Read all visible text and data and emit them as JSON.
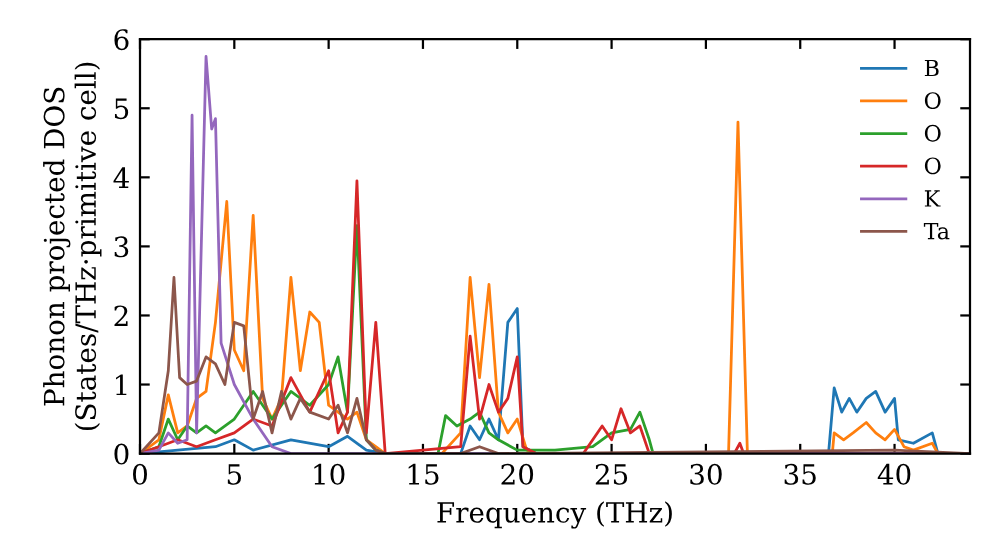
{
  "chart_data": {
    "type": "line",
    "xlabel": "Frequency (THz)",
    "ylabel": "Phonon projected DOS\n(States/THz·primitive cell)",
    "xlim": [
      0,
      44
    ],
    "ylim": [
      0,
      6
    ],
    "xticks": [
      0,
      5,
      10,
      15,
      20,
      25,
      30,
      35,
      40
    ],
    "yticks": [
      0,
      1,
      2,
      3,
      4,
      5,
      6
    ],
    "grid": false,
    "legend": "top right",
    "marker": "none",
    "line_style": "solid",
    "series": [
      {
        "name": "B",
        "color": "#1f77b4",
        "x": [
          0,
          2,
          4,
          5,
          6,
          8,
          10,
          11,
          12,
          13,
          17,
          17.5,
          18,
          18.5,
          19,
          19.5,
          20,
          20.3,
          21,
          36.5,
          36.8,
          37.2,
          37.6,
          38,
          38.5,
          39,
          39.5,
          40,
          40.2,
          41,
          42,
          42.3,
          44
        ],
        "values": [
          0,
          0.05,
          0.1,
          0.2,
          0.05,
          0.2,
          0.1,
          0.25,
          0.05,
          0,
          0,
          0.4,
          0.2,
          0.5,
          0.2,
          1.9,
          2.1,
          0.1,
          0,
          0,
          0.95,
          0.6,
          0.8,
          0.6,
          0.8,
          0.9,
          0.6,
          0.8,
          0.2,
          0.15,
          0.3,
          0,
          0
        ]
      },
      {
        "name": "O",
        "color": "#ff7f0e",
        "x": [
          0,
          1,
          1.5,
          2,
          2.5,
          3,
          3.5,
          4,
          4.6,
          5,
          5.5,
          6,
          6.5,
          7,
          7.5,
          8,
          8.5,
          9,
          9.5,
          10,
          10.5,
          11,
          11.5,
          12,
          12.5,
          13,
          16,
          17,
          17.5,
          18,
          18.5,
          19,
          19.5,
          20,
          20.5,
          21,
          31.2,
          31.7,
          32.2,
          36.7,
          36.8,
          37.3,
          37.8,
          38.5,
          39,
          39.5,
          40,
          40.5,
          41,
          42,
          42.3,
          44
        ],
        "values": [
          0,
          0.2,
          0.85,
          0.3,
          0.4,
          0.8,
          0.9,
          1.9,
          3.65,
          1.5,
          1.2,
          3.45,
          0.8,
          0.5,
          0.8,
          2.55,
          1.2,
          2.05,
          1.9,
          0.7,
          0.6,
          0.5,
          0.6,
          0.2,
          0.1,
          0,
          0,
          0.3,
          2.55,
          1.1,
          2.45,
          0.6,
          0.3,
          0.5,
          0.05,
          0,
          0,
          4.8,
          0,
          0,
          0.3,
          0.2,
          0.3,
          0.45,
          0.3,
          0.2,
          0.35,
          0.1,
          0.05,
          0.15,
          0,
          0
        ]
      },
      {
        "name": "O",
        "color": "#2ca02c",
        "x": [
          0,
          1,
          1.5,
          2,
          2.5,
          3,
          3.5,
          4,
          5,
          6,
          7,
          8,
          9,
          10,
          10.5,
          11,
          11.5,
          12,
          12.5,
          13,
          15.8,
          16.2,
          16.8,
          17.5,
          18,
          18.5,
          19,
          20,
          22,
          24,
          25,
          26,
          26.5,
          27,
          27.2,
          44
        ],
        "values": [
          0,
          0.1,
          0.5,
          0.2,
          0.4,
          0.3,
          0.4,
          0.3,
          0.5,
          0.9,
          0.5,
          0.9,
          0.7,
          1.0,
          1.4,
          0.6,
          3.3,
          0.2,
          0.05,
          0,
          0,
          0.55,
          0.4,
          0.5,
          0.6,
          0.3,
          0.2,
          0.05,
          0.05,
          0.1,
          0.3,
          0.35,
          0.6,
          0.2,
          0,
          0
        ]
      },
      {
        "name": "O",
        "color": "#d62728",
        "x": [
          0,
          1,
          2,
          3,
          4,
          5,
          6,
          7,
          8,
          9,
          10,
          10.5,
          11,
          11.5,
          12,
          12.5,
          13,
          17,
          17.5,
          18,
          18.5,
          19,
          19.5,
          20,
          20.3,
          21,
          23.5,
          24.5,
          25,
          25.5,
          26,
          26.5,
          27,
          31.5,
          31.8,
          32,
          44
        ],
        "values": [
          0,
          0.1,
          0.2,
          0.1,
          0.2,
          0.3,
          0.5,
          0.4,
          1.1,
          0.6,
          1.2,
          0.3,
          0.6,
          3.95,
          0.3,
          1.9,
          0,
          0.1,
          1.7,
          0.5,
          1.0,
          0.6,
          0.8,
          1.4,
          0.1,
          0,
          0,
          0.4,
          0.2,
          0.65,
          0.3,
          0.4,
          0,
          0,
          0.15,
          0,
          0
        ]
      },
      {
        "name": "K",
        "color": "#9467bd",
        "x": [
          0,
          1,
          1.5,
          2,
          2.5,
          2.76,
          3.0,
          3.5,
          3.8,
          4.0,
          4.3,
          5,
          6,
          7,
          8,
          44
        ],
        "values": [
          0,
          0.05,
          0.3,
          0.15,
          0.2,
          4.9,
          0.3,
          5.75,
          4.7,
          4.85,
          1.6,
          1.0,
          0.5,
          0.1,
          0,
          0
        ]
      },
      {
        "name": "Ta",
        "color": "#8c564b",
        "x": [
          0,
          1,
          1.5,
          1.8,
          2.1,
          2.5,
          3,
          3.5,
          4,
          4.5,
          5,
          5.5,
          6,
          6.5,
          7,
          7.5,
          8,
          8.5,
          9,
          10,
          10.5,
          11,
          11.5,
          12,
          12.5,
          13,
          17,
          18,
          19,
          40,
          44
        ],
        "values": [
          0,
          0.3,
          1.2,
          2.55,
          1.1,
          1.0,
          1.05,
          1.4,
          1.3,
          1.0,
          1.9,
          1.85,
          0.5,
          0.9,
          0.3,
          0.9,
          0.5,
          0.8,
          0.6,
          0.5,
          0.7,
          0.3,
          0.8,
          0.2,
          0.05,
          0,
          0,
          0.1,
          0,
          0.05,
          0
        ]
      }
    ]
  }
}
